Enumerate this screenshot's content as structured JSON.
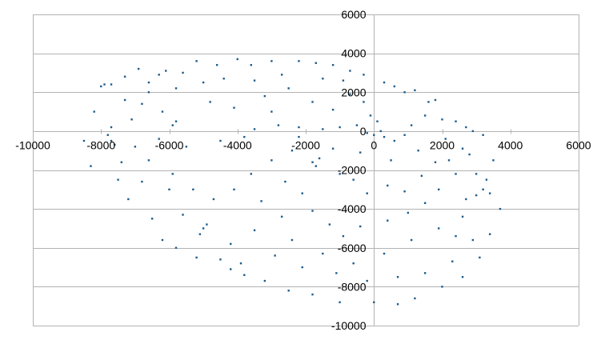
{
  "chart_data": {
    "type": "scatter",
    "title": "",
    "xlabel": "",
    "ylabel": "",
    "xlim": [
      -10000,
      6000
    ],
    "ylim": [
      -10000,
      6000
    ],
    "x_ticks": [
      -10000,
      -8000,
      -6000,
      -4000,
      -2000,
      0,
      2000,
      4000,
      6000
    ],
    "y_ticks": [
      -10000,
      -8000,
      -6000,
      -4000,
      -2000,
      0,
      2000,
      4000,
      6000
    ],
    "x_tick_labels": [
      "-10000",
      "-8000",
      "-6000",
      "-4000",
      "-2000",
      "0",
      "2000",
      "4000",
      "6000"
    ],
    "y_tick_labels": [
      "-10000",
      "-8000",
      "-6000",
      "-4000",
      "-2000",
      "0",
      "2000",
      "4000",
      "6000"
    ],
    "grid": "horizontal",
    "legend": "none",
    "marker_color": "#1f5c8b",
    "series": [
      {
        "points": [
          [
            -8000,
            2300
          ],
          [
            -7900,
            2400
          ],
          [
            -7700,
            2400
          ],
          [
            -8200,
            1000
          ],
          [
            -8500,
            -500
          ],
          [
            -7800,
            -200
          ],
          [
            -7700,
            -500
          ],
          [
            -7600,
            -700
          ],
          [
            -8300,
            -1800
          ],
          [
            -7500,
            -2500
          ],
          [
            -7200,
            -3500
          ],
          [
            -6500,
            -4500
          ],
          [
            -6200,
            -5600
          ],
          [
            -5800,
            -6000
          ],
          [
            -5200,
            -6500
          ],
          [
            -5000,
            -5000
          ],
          [
            -5100,
            -5300
          ],
          [
            -4900,
            -4800
          ],
          [
            -4500,
            -6600
          ],
          [
            -4200,
            -7100
          ],
          [
            -3800,
            -7400
          ],
          [
            -3200,
            -7700
          ],
          [
            -2500,
            -8200
          ],
          [
            -1800,
            -8400
          ],
          [
            -1000,
            -8800
          ],
          [
            0,
            -8800
          ],
          [
            700,
            -8900
          ],
          [
            1200,
            -8600
          ],
          [
            2000,
            -8000
          ],
          [
            2600,
            -7500
          ],
          [
            3100,
            -6500
          ],
          [
            3400,
            -5300
          ],
          [
            3700,
            -4000
          ],
          [
            3400,
            -3200
          ],
          [
            3200,
            -3000
          ],
          [
            3000,
            -3300
          ],
          [
            3300,
            -2500
          ],
          [
            3500,
            -1500
          ],
          [
            3200,
            -200
          ],
          [
            2900,
            0
          ],
          [
            2700,
            200
          ],
          [
            2400,
            500
          ],
          [
            2000,
            600
          ],
          [
            1600,
            1500
          ],
          [
            1800,
            1600
          ],
          [
            1200,
            2100
          ],
          [
            600,
            2300
          ],
          [
            900,
            2000
          ],
          [
            300,
            2500
          ],
          [
            -300,
            2900
          ],
          [
            -700,
            3100
          ],
          [
            -1200,
            3400
          ],
          [
            -1700,
            3500
          ],
          [
            -2200,
            3600
          ],
          [
            -3000,
            3600
          ],
          [
            -3600,
            3400
          ],
          [
            -4000,
            3700
          ],
          [
            -4600,
            3400
          ],
          [
            -5200,
            3600
          ],
          [
            -5600,
            3000
          ],
          [
            -6100,
            3100
          ],
          [
            -6300,
            2900
          ],
          [
            -6900,
            3200
          ],
          [
            -7300,
            2800
          ],
          [
            -6600,
            2000
          ],
          [
            -6200,
            1000
          ],
          [
            -5800,
            500
          ],
          [
            -5900,
            300
          ],
          [
            -6300,
            -400
          ],
          [
            -5500,
            -800
          ],
          [
            -4500,
            -500
          ],
          [
            -3800,
            -300
          ],
          [
            -3500,
            100
          ],
          [
            -2800,
            300
          ],
          [
            -2200,
            200
          ],
          [
            -1500,
            100
          ],
          [
            -1000,
            200
          ],
          [
            -500,
            300
          ],
          [
            -200,
            -100
          ],
          [
            0,
            -200
          ],
          [
            200,
            0
          ],
          [
            300,
            -300
          ],
          [
            100,
            500
          ],
          [
            -100,
            800
          ],
          [
            600,
            -500
          ],
          [
            900,
            -200
          ],
          [
            1100,
            300
          ],
          [
            1300,
            -1000
          ],
          [
            1800,
            -1600
          ],
          [
            2200,
            -1500
          ],
          [
            2600,
            -900
          ],
          [
            2400,
            -2200
          ],
          [
            1900,
            -3000
          ],
          [
            1500,
            -3700
          ],
          [
            1000,
            -4200
          ],
          [
            400,
            -4600
          ],
          [
            -400,
            -4900
          ],
          [
            -900,
            -5400
          ],
          [
            -1300,
            -4800
          ],
          [
            -1800,
            -4100
          ],
          [
            -2100,
            -3200
          ],
          [
            -1800,
            -1600
          ],
          [
            -1600,
            -1400
          ],
          [
            -1700,
            -1800
          ],
          [
            -2400,
            -1000
          ],
          [
            -3000,
            -1500
          ],
          [
            -3600,
            -2200
          ],
          [
            -4100,
            -3000
          ],
          [
            -4700,
            -3500
          ],
          [
            -5300,
            -3000
          ],
          [
            -5900,
            -2200
          ],
          [
            -6600,
            -1500
          ],
          [
            -7000,
            -800
          ],
          [
            -7100,
            600
          ],
          [
            -6800,
            1400
          ],
          [
            -4800,
            1500
          ],
          [
            -4100,
            1200
          ],
          [
            -3200,
            1800
          ],
          [
            -2500,
            2200
          ],
          [
            -1800,
            1500
          ],
          [
            -1200,
            1100
          ],
          [
            -700,
            1900
          ],
          [
            -300,
            1500
          ],
          [
            -5000,
            2500
          ],
          [
            -4400,
            2700
          ],
          [
            -3500,
            2600
          ],
          [
            -2700,
            2900
          ],
          [
            -1500,
            2700
          ],
          [
            -900,
            2600
          ],
          [
            -600,
            -2500
          ],
          [
            -200,
            -3200
          ],
          [
            400,
            -2800
          ],
          [
            900,
            -3100
          ],
          [
            1400,
            -2300
          ],
          [
            500,
            -1500
          ],
          [
            -1000,
            -2200
          ],
          [
            -2600,
            -2600
          ],
          [
            -3300,
            -3600
          ],
          [
            -2700,
            -4400
          ],
          [
            -3500,
            -5100
          ],
          [
            -4200,
            -5800
          ],
          [
            -2400,
            -5600
          ],
          [
            -1500,
            -6300
          ],
          [
            -600,
            -6800
          ],
          [
            300,
            -6300
          ],
          [
            1100,
            -5600
          ],
          [
            1900,
            -5000
          ],
          [
            2600,
            -4400
          ],
          [
            2900,
            -5600
          ],
          [
            2300,
            -6700
          ],
          [
            1500,
            -7300
          ],
          [
            700,
            -7500
          ],
          [
            -200,
            -7700
          ],
          [
            -1100,
            -7300
          ],
          [
            -2100,
            -7000
          ],
          [
            -2900,
            -6400
          ],
          [
            -3900,
            -6800
          ],
          [
            -5600,
            -4300
          ],
          [
            -6000,
            -3000
          ],
          [
            -6800,
            -2600
          ],
          [
            -7400,
            -1600
          ],
          [
            -7700,
            200
          ],
          [
            -7300,
            1600
          ],
          [
            -6600,
            2500
          ],
          [
            -5800,
            2200
          ],
          [
            -3000,
            1000
          ],
          [
            -2200,
            -300
          ],
          [
            -1200,
            -900
          ],
          [
            -400,
            -1100
          ],
          [
            1500,
            800
          ],
          [
            2100,
            -400
          ],
          [
            2800,
            -1200
          ],
          [
            3000,
            -2200
          ],
          [
            2700,
            -3500
          ],
          [
            2400,
            -5400
          ]
        ]
      }
    ]
  }
}
